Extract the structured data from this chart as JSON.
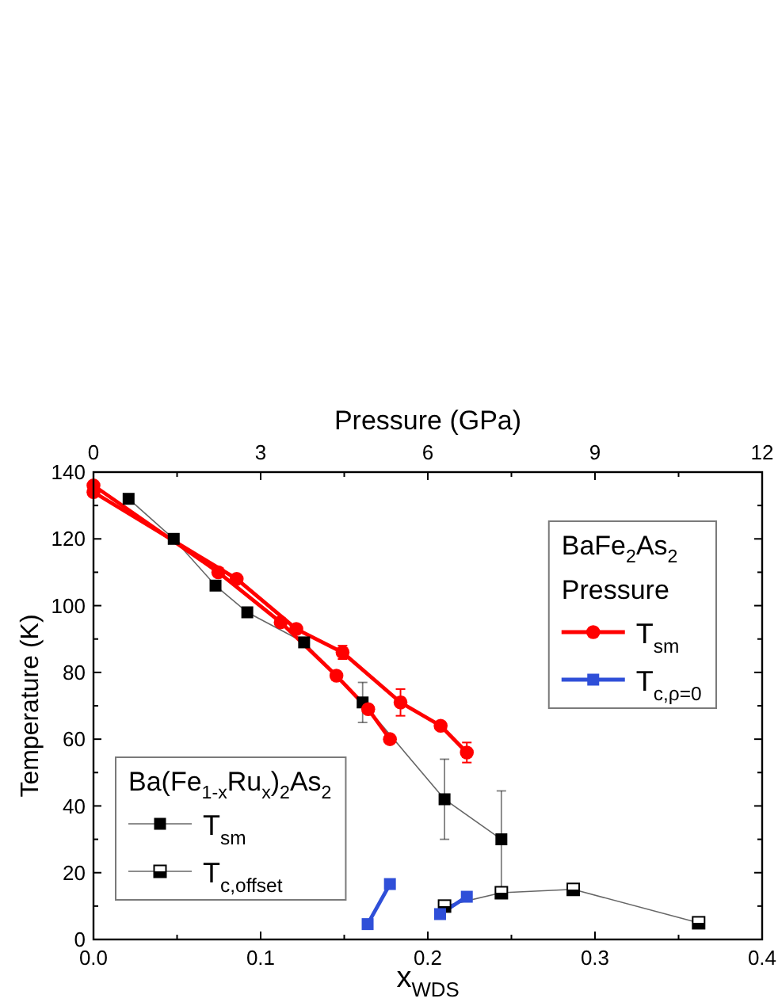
{
  "chart_data": {
    "type": "line",
    "xlabel": "x$_{WDS}$",
    "ylabel": "Temperature (K)",
    "x2label": "Pressure (GPa)",
    "xlim": [
      0,
      0.4
    ],
    "xticks": [
      {
        "value": 0,
        "label": "0.0"
      },
      {
        "value": 0.05,
        "label": null
      },
      0.1,
      {
        "value": 0.15,
        "label": null
      },
      0.2,
      {
        "value": 0.25,
        "label": null
      },
      0.3,
      {
        "value": 0.35,
        "label": null
      },
      0.4
    ],
    "x2lim": [
      0,
      12
    ],
    "x2ticks": [
      0,
      {
        "value": 1.5,
        "label": null
      },
      3,
      {
        "value": 4.5,
        "label": null
      },
      6,
      {
        "value": 7.5,
        "label": null
      },
      9,
      {
        "value": 10.5,
        "label": null
      },
      12
    ],
    "ylim": [
      0,
      140
    ],
    "yticks": [
      0,
      {
        "value": 10,
        "label": null
      },
      20,
      {
        "value": 30,
        "label": null
      },
      40,
      {
        "value": 50,
        "label": null
      },
      60,
      {
        "value": 70,
        "label": null
      },
      80,
      {
        "value": 90,
        "label": null
      },
      100,
      {
        "value": 110,
        "label": null
      },
      120,
      {
        "value": 130,
        "label": null
      },
      140
    ],
    "legend": [
      "bottom left",
      "top right"
    ],
    "legend_title": [
      "Ba(Fe$_{1-x}$Ru$_{x}$)$_{2}$As$_{2}$",
      "BaFe$_{2}$As$_{2}$\nPressure"
    ],
    "series": [
      {
        "name": "T$_{sm}$",
        "color": "#000000",
        "marker": "square",
        "x": [
          0.021,
          0.048,
          0.073,
          0.092,
          0.126,
          0.161,
          0.21,
          0.244
        ],
        "values": [
          132,
          120,
          106,
          98,
          89,
          71,
          42,
          30
        ],
        "errors": [
          null,
          null,
          null,
          null,
          null,
          6,
          12,
          14.5
        ]
      },
      {
        "name": "T$_{c,offset}$",
        "color": "#000000",
        "marker": "square",
        "x": [
          0.21,
          0.244,
          0.287,
          0.362
        ],
        "values": [
          10,
          14,
          15,
          5
        ]
      },
      {
        "name": "T$_{sm}$",
        "color": "#ff0000",
        "marker": "circle",
        "axis": "x2",
        "x": [
          0,
          2.57,
          3.64,
          4.47,
          5.51,
          6.23,
          6.7
        ],
        "values": [
          134,
          108,
          93,
          86,
          71,
          64,
          56
        ],
        "errors": [
          null,
          null,
          null,
          2,
          4,
          null,
          3
        ]
      },
      {
        "color": "#ff0000",
        "marker": "circle",
        "axis": "x2",
        "x": [
          0,
          2.24,
          3.36,
          4.36,
          4.93,
          5.32
        ],
        "values": [
          136,
          110,
          95,
          79,
          69,
          60
        ]
      },
      {
        "name": "T$_{c,ρ=0}$",
        "color": "#2f4fd8",
        "marker": "square",
        "axis": "x2",
        "x": [
          4.92,
          5.32
        ],
        "values": [
          4.6,
          16.6
        ]
      },
      {
        "color": "#2f4fd8",
        "marker": "square",
        "axis": "x2",
        "x": [
          6.22,
          6.7
        ],
        "values": [
          7.6,
          12.8
        ]
      }
    ]
  }
}
